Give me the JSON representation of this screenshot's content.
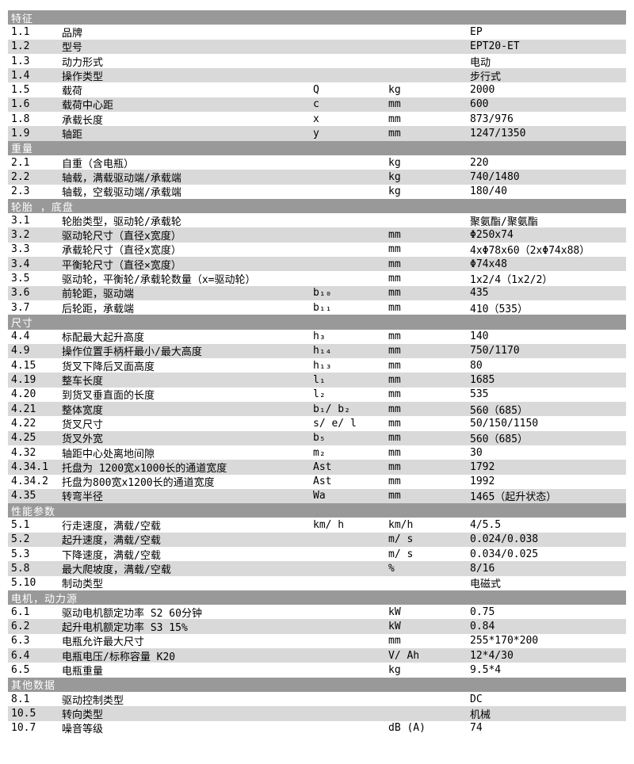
{
  "colors": {
    "section_header_bg": "#999999",
    "section_header_text": "#ffffff",
    "row_bg": "#ffffff",
    "row_alt_bg": "#d9d9d9",
    "text": "#000000"
  },
  "table": {
    "sections": [
      {
        "title": "特征",
        "rows": [
          {
            "num": "1.1",
            "label": "品牌",
            "symbol": "",
            "unit": "",
            "value": "EP"
          },
          {
            "num": "1.2",
            "label": "型号",
            "symbol": "",
            "unit": "",
            "value": "EPT20-ET"
          },
          {
            "num": "1.3",
            "label": "动力形式",
            "symbol": "",
            "unit": "",
            "value": "电动"
          },
          {
            "num": "1.4",
            "label": "操作类型",
            "symbol": "",
            "unit": "",
            "value": "步行式"
          },
          {
            "num": "1.5",
            "label": "载荷",
            "symbol": "Q",
            "unit": "kg",
            "value": "2000"
          },
          {
            "num": "1.6",
            "label": "载荷中心距",
            "symbol": "c",
            "unit": "mm",
            "value": "600"
          },
          {
            "num": "1.8",
            "label": "承载长度",
            "symbol": "x",
            "unit": "mm",
            "value": "873/976"
          },
          {
            "num": "1.9",
            "label": "轴距",
            "symbol": "y",
            "unit": "mm",
            "value": "1247/1350"
          }
        ]
      },
      {
        "title": "重量",
        "rows": [
          {
            "num": "2.1",
            "label": "自重（含电瓶）",
            "symbol": "",
            "unit": "kg",
            "value": "220"
          },
          {
            "num": "2.2",
            "label": "轴载，满载驱动端/承载端",
            "symbol": "",
            "unit": "kg",
            "value": "740/1480"
          },
          {
            "num": "2.3",
            "label": "轴载，空载驱动端/承载端",
            "symbol": "",
            "unit": "kg",
            "value": "180/40"
          }
        ]
      },
      {
        "title": "轮胎 ，底盘",
        "rows": [
          {
            "num": "3.1",
            "label": "轮胎类型，驱动轮/承载轮",
            "symbol": "",
            "unit": "",
            "value": "聚氨酯/聚氨酯"
          },
          {
            "num": "3.2",
            "label": "驱动轮尺寸（直径x宽度）",
            "symbol": "",
            "unit": "mm",
            "value": "Φ250x74"
          },
          {
            "num": "3.3",
            "label": "承载轮尺寸（直径x宽度）",
            "symbol": "",
            "unit": "mm",
            "value": "4xΦ78x60（2xΦ74x88）"
          },
          {
            "num": "3.4",
            "label": "平衡轮尺寸（直径×宽度）",
            "symbol": "",
            "unit": "mm",
            "value": "Φ74x48"
          },
          {
            "num": "3.5",
            "label": "驱动轮，平衡轮/承载轮数量（x=驱动轮）",
            "symbol": "",
            "unit": "mm",
            "value": "1x2/4（1x2/2）"
          },
          {
            "num": "3.6",
            "label": "前轮距，驱动端",
            "symbol": "b₁₀",
            "unit": "mm",
            "value": "435"
          },
          {
            "num": "3.7",
            "label": "后轮距，承载端",
            "symbol": "b₁₁",
            "unit": "mm",
            "value": "410（535）"
          }
        ]
      },
      {
        "title": "尺寸",
        "rows": [
          {
            "num": "4.4",
            "label": "标配最大起升高度",
            "symbol": "h₃",
            "unit": "mm",
            "value": "140"
          },
          {
            "num": "4.9",
            "label": "操作位置手柄杆最小/最大高度",
            "symbol": "h₁₄",
            "unit": "mm",
            "value": "750/1170"
          },
          {
            "num": "4.15",
            "label": "货叉下降后叉面高度",
            "symbol": "h₁₃",
            "unit": "mm",
            "value": "80"
          },
          {
            "num": "4.19",
            "label": "整车长度",
            "symbol": "l₁",
            "unit": "mm",
            "value": "1685"
          },
          {
            "num": "4.20",
            "label": "到货叉垂直面的长度",
            "symbol": "l₂",
            "unit": "mm",
            "value": "535"
          },
          {
            "num": "4.21",
            "label": "整体宽度",
            "symbol": "b₁/ b₂",
            "unit": "mm",
            "value": "560（685）"
          },
          {
            "num": "4.22",
            "label": "货叉尺寸",
            "symbol": "s/ e/ l",
            "unit": "mm",
            "value": "50/150/1150"
          },
          {
            "num": "4.25",
            "label": "货叉外宽",
            "symbol": "b₅",
            "unit": "mm",
            "value": "560（685）"
          },
          {
            "num": "4.32",
            "label": "轴距中心处离地间隙",
            "symbol": "m₂",
            "unit": "mm",
            "value": "30"
          },
          {
            "num": "4.34.1",
            "label": "托盘为 1200宽x1000长的通道宽度",
            "symbol": "Ast",
            "unit": "mm",
            "value": "1792"
          },
          {
            "num": "4.34.2",
            "label": "托盘为800宽x1200长的通道宽度",
            "symbol": "Ast",
            "unit": "mm",
            "value": "1992"
          },
          {
            "num": "4.35",
            "label": "转弯半径",
            "symbol": "Wa",
            "unit": "mm",
            "value": "1465（起升状态）"
          }
        ]
      },
      {
        "title": "性能参数",
        "rows": [
          {
            "num": "5.1",
            "label": "行走速度，满载/空载",
            "symbol": "km/ h",
            "unit": "km/h",
            "value": "4/5.5"
          },
          {
            "num": "5.2",
            "label": "起升速度，满载/空载",
            "symbol": "",
            "unit": "m/ s",
            "value": "0.024/0.038"
          },
          {
            "num": "5.3",
            "label": "下降速度，满载/空载",
            "symbol": "",
            "unit": "m/ s",
            "value": "0.034/0.025"
          },
          {
            "num": "5.8",
            "label": "最大爬坡度，满载/空载",
            "symbol": "",
            "unit": "%",
            "value": "8/16"
          },
          {
            "num": "5.10",
            "label": "制动类型",
            "symbol": "",
            "unit": "",
            "value": "电磁式"
          }
        ]
      },
      {
        "title": "电机，动力源",
        "rows": [
          {
            "num": "6.1",
            "label": "驱动电机额定功率 S2 60分钟",
            "symbol": "",
            "unit": "kW",
            "value": "0.75"
          },
          {
            "num": "6.2",
            "label": "起升电机额定功率 S3 15%",
            "symbol": "",
            "unit": "kW",
            "value": "0.84"
          },
          {
            "num": "6.3",
            "label": "电瓶允许最大尺寸",
            "symbol": "",
            "unit": "mm",
            "value": "255*170*200"
          },
          {
            "num": "6.4",
            "label": "电瓶电压/标称容量 K20",
            "symbol": "",
            "unit": "V/ Ah",
            "value": "12*4/30"
          },
          {
            "num": "6.5",
            "label": "电瓶重量",
            "symbol": "",
            "unit": "kg",
            "value": "9.5*4"
          }
        ]
      },
      {
        "title": "其他数据",
        "rows": [
          {
            "num": "8.1",
            "label": "驱动控制类型",
            "symbol": "",
            "unit": "",
            "value": "DC"
          },
          {
            "num": "10.5",
            "label": "转向类型",
            "symbol": "",
            "unit": "",
            "value": "机械"
          },
          {
            "num": "10.7",
            "label": "噪音等级",
            "symbol": "",
            "unit": "dB (A)",
            "value": "74"
          }
        ]
      }
    ]
  }
}
